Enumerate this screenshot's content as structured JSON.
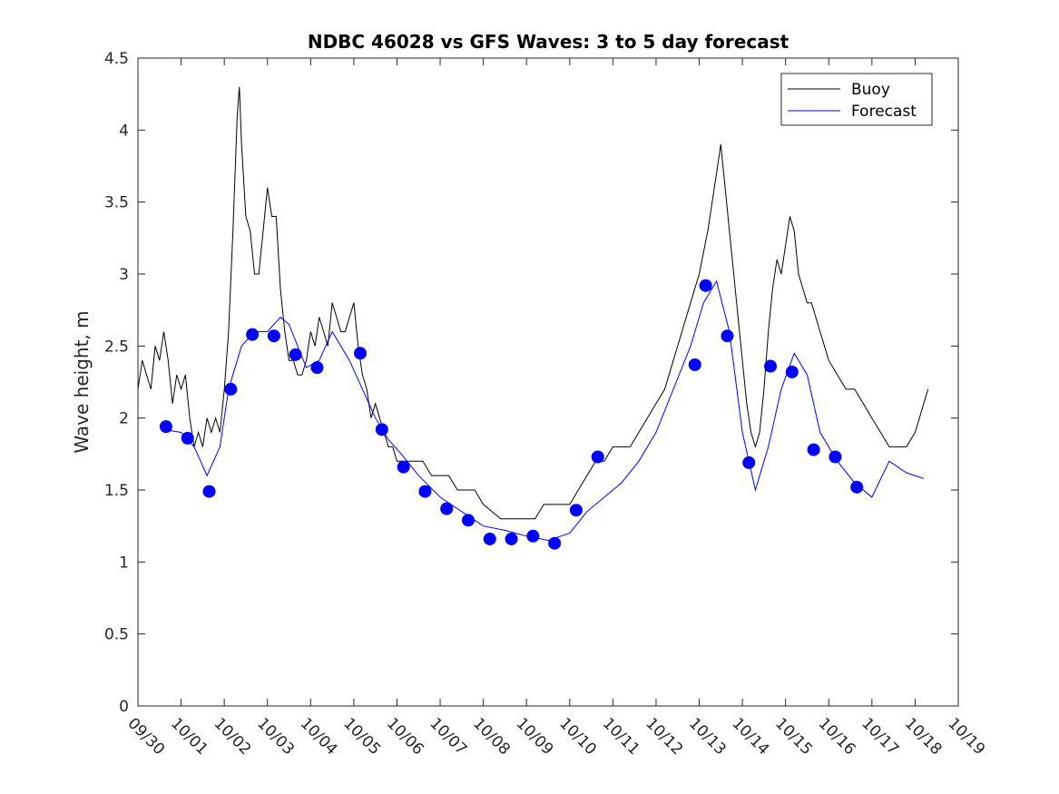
{
  "chart_data": {
    "type": "line",
    "title": "NDBC 46028 vs GFS Waves: 3 to 5 day forecast",
    "xlabel": "",
    "ylabel": "Wave height, m",
    "ylim": [
      0,
      4.5
    ],
    "yticks": [
      "0",
      "0.5",
      "1",
      "1.5",
      "2",
      "2.5",
      "3",
      "3.5",
      "4",
      "4.5"
    ],
    "xlim": [
      0,
      19
    ],
    "xticks": [
      "09/30",
      "10/01",
      "10/02",
      "10/03",
      "10/04",
      "10/05",
      "10/06",
      "10/07",
      "10/08",
      "10/09",
      "10/10",
      "10/11",
      "10/12",
      "10/13",
      "10/14",
      "10/15",
      "10/16",
      "10/17",
      "10/18",
      "10/19"
    ],
    "legend": {
      "placement": "top-right",
      "entries": [
        "Buoy",
        "Forecast"
      ]
    },
    "colors": {
      "buoy": "#000000",
      "forecast": "#0000ff",
      "axis": "#262626"
    },
    "series": [
      {
        "name": "Buoy",
        "color": "#000000",
        "x": [
          0.0,
          0.1,
          0.2,
          0.3,
          0.4,
          0.5,
          0.6,
          0.7,
          0.8,
          0.9,
          1.0,
          1.1,
          1.2,
          1.3,
          1.4,
          1.5,
          1.6,
          1.7,
          1.8,
          1.9,
          2.0,
          2.1,
          2.2,
          2.3,
          2.35,
          2.4,
          2.5,
          2.6,
          2.7,
          2.8,
          2.9,
          3.0,
          3.1,
          3.2,
          3.3,
          3.4,
          3.5,
          3.6,
          3.7,
          3.8,
          3.9,
          4.0,
          4.1,
          4.2,
          4.3,
          4.4,
          4.5,
          4.6,
          4.7,
          4.8,
          4.9,
          5.0,
          5.1,
          5.2,
          5.3,
          5.4,
          5.5,
          5.6,
          5.7,
          5.8,
          5.9,
          6.0,
          6.2,
          6.4,
          6.6,
          6.8,
          7.0,
          7.2,
          7.4,
          7.6,
          7.8,
          8.0,
          8.2,
          8.4,
          8.6,
          8.8,
          9.0,
          9.2,
          9.4,
          9.6,
          9.8,
          10.0,
          10.2,
          10.4,
          10.6,
          10.8,
          11.0,
          11.2,
          11.4,
          11.6,
          11.8,
          12.0,
          12.2,
          12.4,
          12.6,
          12.8,
          13.0,
          13.2,
          13.3,
          13.4,
          13.5,
          13.6,
          13.7,
          13.8,
          13.9,
          14.0,
          14.1,
          14.2,
          14.3,
          14.4,
          14.5,
          14.6,
          14.7,
          14.8,
          14.9,
          15.0,
          15.1,
          15.2,
          15.3,
          15.4,
          15.5,
          15.6,
          15.7,
          15.8,
          15.9,
          16.0,
          16.2,
          16.4,
          16.6,
          16.8,
          17.0,
          17.2,
          17.4,
          17.6,
          17.8,
          18.0,
          18.1,
          18.2,
          18.3
        ],
        "values": [
          2.2,
          2.4,
          2.3,
          2.2,
          2.5,
          2.4,
          2.6,
          2.4,
          2.1,
          2.3,
          2.2,
          2.3,
          2.0,
          1.8,
          1.9,
          1.8,
          2.0,
          1.9,
          2.0,
          1.9,
          2.2,
          2.6,
          3.3,
          4.1,
          4.3,
          3.9,
          3.4,
          3.3,
          3.0,
          3.0,
          3.3,
          3.6,
          3.4,
          3.4,
          2.9,
          2.6,
          2.4,
          2.4,
          2.3,
          2.3,
          2.4,
          2.6,
          2.5,
          2.7,
          2.6,
          2.5,
          2.8,
          2.7,
          2.6,
          2.6,
          2.7,
          2.8,
          2.5,
          2.3,
          2.2,
          2.0,
          2.1,
          2.0,
          1.9,
          1.8,
          1.8,
          1.7,
          1.7,
          1.7,
          1.7,
          1.6,
          1.6,
          1.6,
          1.5,
          1.5,
          1.5,
          1.4,
          1.35,
          1.3,
          1.3,
          1.3,
          1.3,
          1.3,
          1.4,
          1.4,
          1.4,
          1.4,
          1.5,
          1.6,
          1.7,
          1.7,
          1.8,
          1.8,
          1.8,
          1.9,
          2.0,
          2.1,
          2.2,
          2.4,
          2.6,
          2.8,
          3.0,
          3.3,
          3.5,
          3.7,
          3.9,
          3.6,
          3.3,
          3.0,
          2.7,
          2.4,
          2.1,
          1.9,
          1.8,
          1.9,
          2.2,
          2.6,
          2.9,
          3.1,
          3.0,
          3.2,
          3.4,
          3.3,
          3.0,
          2.9,
          2.8,
          2.8,
          2.7,
          2.6,
          2.5,
          2.4,
          2.3,
          2.2,
          2.2,
          2.1,
          2.0,
          1.9,
          1.8,
          1.8,
          1.8,
          1.9,
          2.0,
          2.1,
          2.2
        ]
      },
      {
        "name": "Forecast",
        "color": "#0000ff",
        "x": [
          0.6,
          1.0,
          1.3,
          1.6,
          1.9,
          2.1,
          2.4,
          2.7,
          3.0,
          3.3,
          3.5,
          3.7,
          3.9,
          4.2,
          4.5,
          4.9,
          5.2,
          5.5,
          5.8,
          6.1,
          6.5,
          7.0,
          7.5,
          8.0,
          8.5,
          9.0,
          9.5,
          10.0,
          10.4,
          10.8,
          11.2,
          11.6,
          12.0,
          12.4,
          12.8,
          13.1,
          13.4,
          13.7,
          14.0,
          14.3,
          14.6,
          14.9,
          15.2,
          15.5,
          15.8,
          16.2,
          16.6,
          17.0,
          17.4,
          17.8,
          18.2
        ],
        "values": [
          1.92,
          1.9,
          1.8,
          1.6,
          1.8,
          2.2,
          2.5,
          2.6,
          2.6,
          2.7,
          2.65,
          2.5,
          2.35,
          2.4,
          2.6,
          2.4,
          2.2,
          2.0,
          1.85,
          1.75,
          1.6,
          1.45,
          1.35,
          1.25,
          1.22,
          1.18,
          1.15,
          1.2,
          1.35,
          1.45,
          1.55,
          1.7,
          1.9,
          2.2,
          2.5,
          2.8,
          2.95,
          2.6,
          1.9,
          1.5,
          1.8,
          2.2,
          2.45,
          2.3,
          1.9,
          1.7,
          1.55,
          1.45,
          1.7,
          1.62,
          1.58
        ]
      },
      {
        "name": "Forecast points",
        "color": "#0000ff",
        "x": [
          0.65,
          1.15,
          1.65,
          2.15,
          2.65,
          3.15,
          3.65,
          4.15,
          5.15,
          5.65,
          6.15,
          6.65,
          7.15,
          7.65,
          8.15,
          8.65,
          9.15,
          9.65,
          10.15,
          10.65,
          12.9,
          13.15,
          13.65,
          14.15,
          14.65,
          15.15,
          15.65,
          16.15,
          16.65
        ],
        "values": [
          1.94,
          1.86,
          1.49,
          2.2,
          2.58,
          2.57,
          2.44,
          2.35,
          2.45,
          1.92,
          1.66,
          1.49,
          1.37,
          1.29,
          1.16,
          1.16,
          1.18,
          1.13,
          1.36,
          1.73,
          2.37,
          2.92,
          2.57,
          1.69,
          2.36,
          2.32,
          1.78,
          1.73,
          1.52
        ]
      }
    ]
  }
}
